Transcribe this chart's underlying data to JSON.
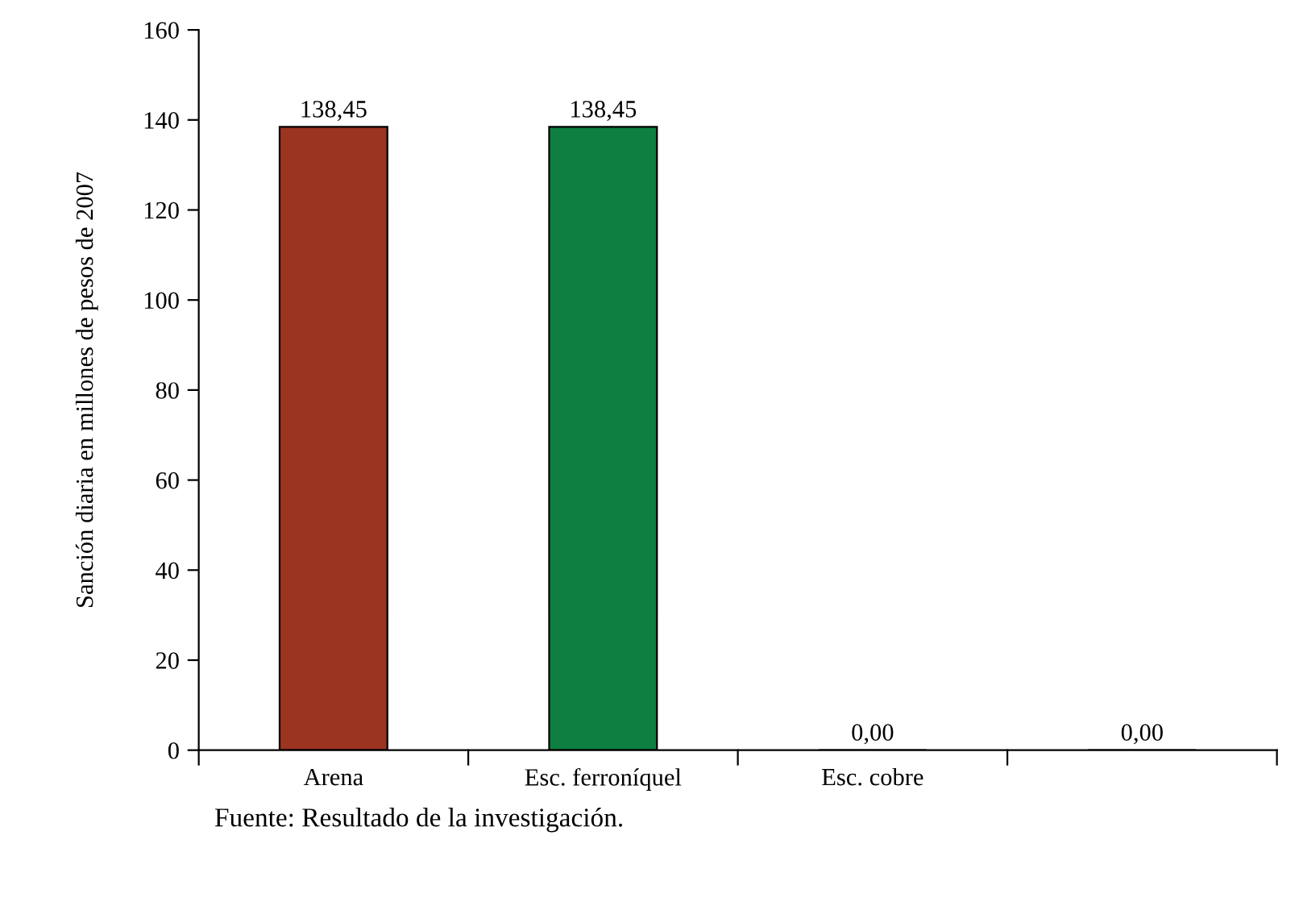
{
  "chart_data": {
    "type": "bar",
    "ylabel": "Sanción diaria en millones de pesos de 2007",
    "categories": [
      "Arena",
      "Esc. ferroníquel",
      "Esc. cobre",
      null
    ],
    "values": [
      138.45,
      138.45,
      0,
      0
    ],
    "colors": [
      "#9b3520",
      "#0e7f40",
      "#0e7f40",
      "#0e7f40"
    ],
    "value_labels": [
      "138,45",
      "138,45",
      "0,00",
      "0,00"
    ],
    "ylim": [
      0,
      160
    ],
    "yticks": [
      0,
      20,
      40,
      60,
      80,
      100,
      120,
      140,
      160
    ],
    "grid": false,
    "legend": false,
    "annotations": [
      "Fuente: Resultado de la investigación."
    ]
  }
}
